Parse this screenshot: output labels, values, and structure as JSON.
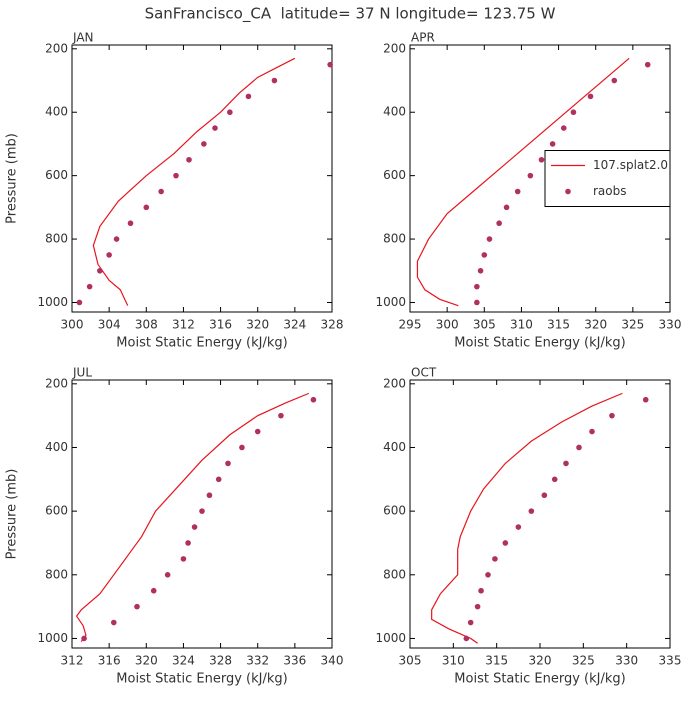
{
  "title": "SanFrancisco_CA  latitude= 37 N longitude= 123.75 W",
  "chart_data": [
    {
      "type": "line",
      "subtitle": "JAN",
      "xlabel": "Moist Static Energy (kJ/kg)",
      "ylabel": "Pressure (mb)",
      "xlim": [
        300,
        328
      ],
      "ylim": [
        1030,
        188
      ],
      "xticks": [
        300,
        304,
        308,
        312,
        316,
        320,
        324,
        328
      ],
      "yticks": [
        200,
        400,
        600,
        800,
        1000
      ],
      "series": [
        {
          "style": "line",
          "color": "#e8141c",
          "x": [
            324,
            322,
            320,
            318,
            316,
            313.5,
            311,
            308,
            305,
            303,
            302.3,
            302.8,
            304,
            305.2,
            306
          ],
          "values": [
            230,
            260,
            290,
            340,
            400,
            460,
            530,
            600,
            680,
            760,
            820,
            880,
            930,
            960,
            1010
          ]
        },
        {
          "style": "markers",
          "color": "#b03060",
          "x": [
            327.8,
            321.8,
            319,
            317,
            315.4,
            314.2,
            312.6,
            311.2,
            309.6,
            308,
            306.3,
            304.8,
            304,
            303,
            301.9,
            300.8
          ],
          "values": [
            250,
            300,
            350,
            400,
            450,
            500,
            550,
            600,
            650,
            700,
            750,
            800,
            850,
            900,
            950,
            1000
          ]
        }
      ]
    },
    {
      "type": "line",
      "subtitle": "APR",
      "xlabel": "Moist Static Energy (kJ/kg)",
      "xlim": [
        295,
        330
      ],
      "ylim": [
        1030,
        188
      ],
      "xticks": [
        295,
        300,
        305,
        310,
        315,
        320,
        325,
        330
      ],
      "yticks": [
        200,
        400,
        600,
        800,
        1000
      ],
      "legend": "center right",
      "series": [
        {
          "name": "107.splat2.0",
          "style": "line",
          "color": "#e8141c",
          "x": [
            324.5,
            322,
            319,
            315,
            311,
            307,
            303.5,
            300,
            297.5,
            296,
            296,
            297,
            299,
            301.5
          ],
          "values": [
            230,
            280,
            340,
            420,
            500,
            580,
            650,
            720,
            800,
            870,
            920,
            960,
            990,
            1010
          ]
        },
        {
          "name": "raobs",
          "style": "markers",
          "color": "#b03060",
          "x": [
            327,
            322.5,
            319.3,
            317,
            315.7,
            314.2,
            312.7,
            311.2,
            309.5,
            308,
            307,
            305.7,
            305,
            304.5,
            304,
            304
          ],
          "values": [
            250,
            300,
            350,
            400,
            450,
            500,
            550,
            600,
            650,
            700,
            750,
            800,
            850,
            900,
            950,
            1000
          ]
        }
      ]
    },
    {
      "type": "line",
      "subtitle": "JUL",
      "xlabel": "Moist Static Energy (kJ/kg)",
      "ylabel": "Pressure (mb)",
      "xlim": [
        312,
        340
      ],
      "ylim": [
        1030,
        188
      ],
      "xticks": [
        312,
        316,
        320,
        324,
        328,
        332,
        336,
        340
      ],
      "yticks": [
        200,
        400,
        600,
        800,
        1000
      ],
      "series": [
        {
          "style": "line",
          "color": "#e8141c",
          "x": [
            337.5,
            335,
            332,
            329,
            326,
            323.5,
            321,
            319.5,
            318,
            316.5,
            315,
            313,
            312.5,
            313.2,
            313.5,
            313
          ],
          "values": [
            230,
            260,
            300,
            360,
            440,
            520,
            600,
            680,
            740,
            800,
            860,
            910,
            930,
            960,
            990,
            1010
          ]
        },
        {
          "style": "markers",
          "color": "#b03060",
          "x": [
            338,
            334.5,
            332,
            330.3,
            328.8,
            327.8,
            326.8,
            326,
            325.2,
            324.5,
            324,
            322.3,
            320.8,
            319,
            316.5,
            313.3
          ],
          "values": [
            250,
            300,
            350,
            400,
            450,
            500,
            550,
            600,
            650,
            700,
            750,
            800,
            850,
            900,
            950,
            1000
          ]
        }
      ]
    },
    {
      "type": "line",
      "subtitle": "OCT",
      "xlabel": "Moist Static Energy (kJ/kg)",
      "xlim": [
        305,
        335
      ],
      "ylim": [
        1030,
        188
      ],
      "xticks": [
        305,
        310,
        315,
        320,
        325,
        330,
        335
      ],
      "yticks": [
        200,
        400,
        600,
        800,
        1000
      ],
      "series": [
        {
          "style": "line",
          "color": "#e8141c",
          "x": [
            329.5,
            326,
            322.5,
            319,
            316,
            313.5,
            312,
            310.8,
            310.5,
            310.5,
            308.5,
            307.5,
            307.5,
            309.5,
            312,
            312.8
          ],
          "values": [
            230,
            270,
            320,
            380,
            450,
            530,
            600,
            680,
            720,
            800,
            860,
            910,
            940,
            970,
            1000,
            1015
          ]
        },
        {
          "style": "markers",
          "color": "#b03060",
          "x": [
            332.2,
            328.3,
            326,
            324.5,
            323,
            321.7,
            320.5,
            319,
            317.5,
            316,
            314.8,
            314,
            313.2,
            312.8,
            312,
            311.5
          ],
          "values": [
            250,
            300,
            350,
            400,
            450,
            500,
            550,
            600,
            650,
            700,
            750,
            800,
            850,
            900,
            950,
            1000
          ]
        }
      ]
    }
  ]
}
